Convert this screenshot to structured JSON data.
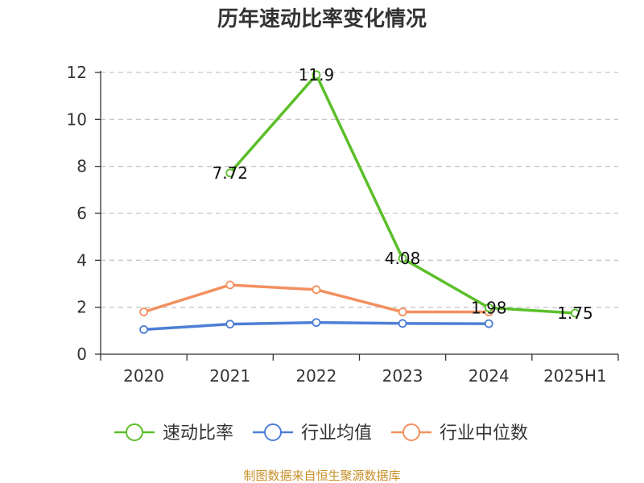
{
  "chart_data": {
    "type": "line",
    "title": "历年速动比率变化情况",
    "categories": [
      "2020",
      "2021",
      "2022",
      "2023",
      "2024",
      "2025H1"
    ],
    "yticks": [
      "0",
      "2",
      "4",
      "6",
      "8",
      "10",
      "12"
    ],
    "ylim": [
      0,
      12
    ],
    "grid": "horizontal dashed",
    "legend_position": "bottom",
    "series": [
      {
        "name": "速动比率",
        "color": "#5bbf2a",
        "values": [
          null,
          7.72,
          11.9,
          4.08,
          1.98,
          1.75
        ],
        "labels": [
          "",
          "7.72",
          "11.9",
          "4.08",
          "1.98",
          "1.75"
        ]
      },
      {
        "name": "行业均值",
        "color": "#4e7fd6",
        "values": [
          1.05,
          1.28,
          1.35,
          1.31,
          1.3,
          null
        ],
        "labels": []
      },
      {
        "name": "行业中位数",
        "color": "#f39060",
        "values": [
          1.8,
          2.95,
          2.75,
          1.8,
          1.8,
          null
        ],
        "labels": []
      }
    ]
  },
  "footer": {
    "source": "制图数据来自恒生聚源数据库"
  }
}
